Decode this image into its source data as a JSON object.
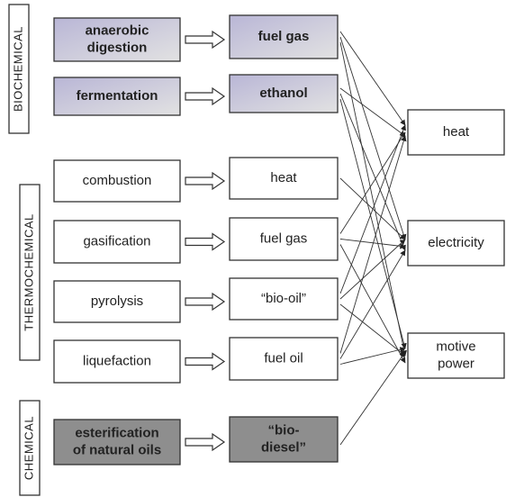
{
  "groups": [
    {
      "label": "BIOCHEMICAL",
      "rows": [
        {
          "process": [
            "anaerobic",
            "digestion"
          ],
          "product": [
            "fuel gas"
          ]
        },
        {
          "process": [
            "fermentation"
          ],
          "product": [
            "ethanol"
          ]
        }
      ]
    },
    {
      "label": "THERMOCHEMICAL",
      "rows": [
        {
          "process": [
            "combustion"
          ],
          "product": [
            "heat"
          ]
        },
        {
          "process": [
            "gasification"
          ],
          "product": [
            "fuel gas"
          ]
        },
        {
          "process": [
            "pyrolysis"
          ],
          "product": [
            "“bio-oil”"
          ]
        },
        {
          "process": [
            "liquefaction"
          ],
          "product": [
            "fuel oil"
          ]
        }
      ]
    },
    {
      "label": "CHEMICAL",
      "rows": [
        {
          "process": [
            "esterification",
            "of natural oils"
          ],
          "product": [
            "“bio-",
            "diesel”"
          ]
        }
      ]
    }
  ],
  "outputs": [
    {
      "label": [
        "heat"
      ]
    },
    {
      "label": [
        "electricity"
      ]
    },
    {
      "label": [
        "motive",
        "power"
      ]
    }
  ]
}
